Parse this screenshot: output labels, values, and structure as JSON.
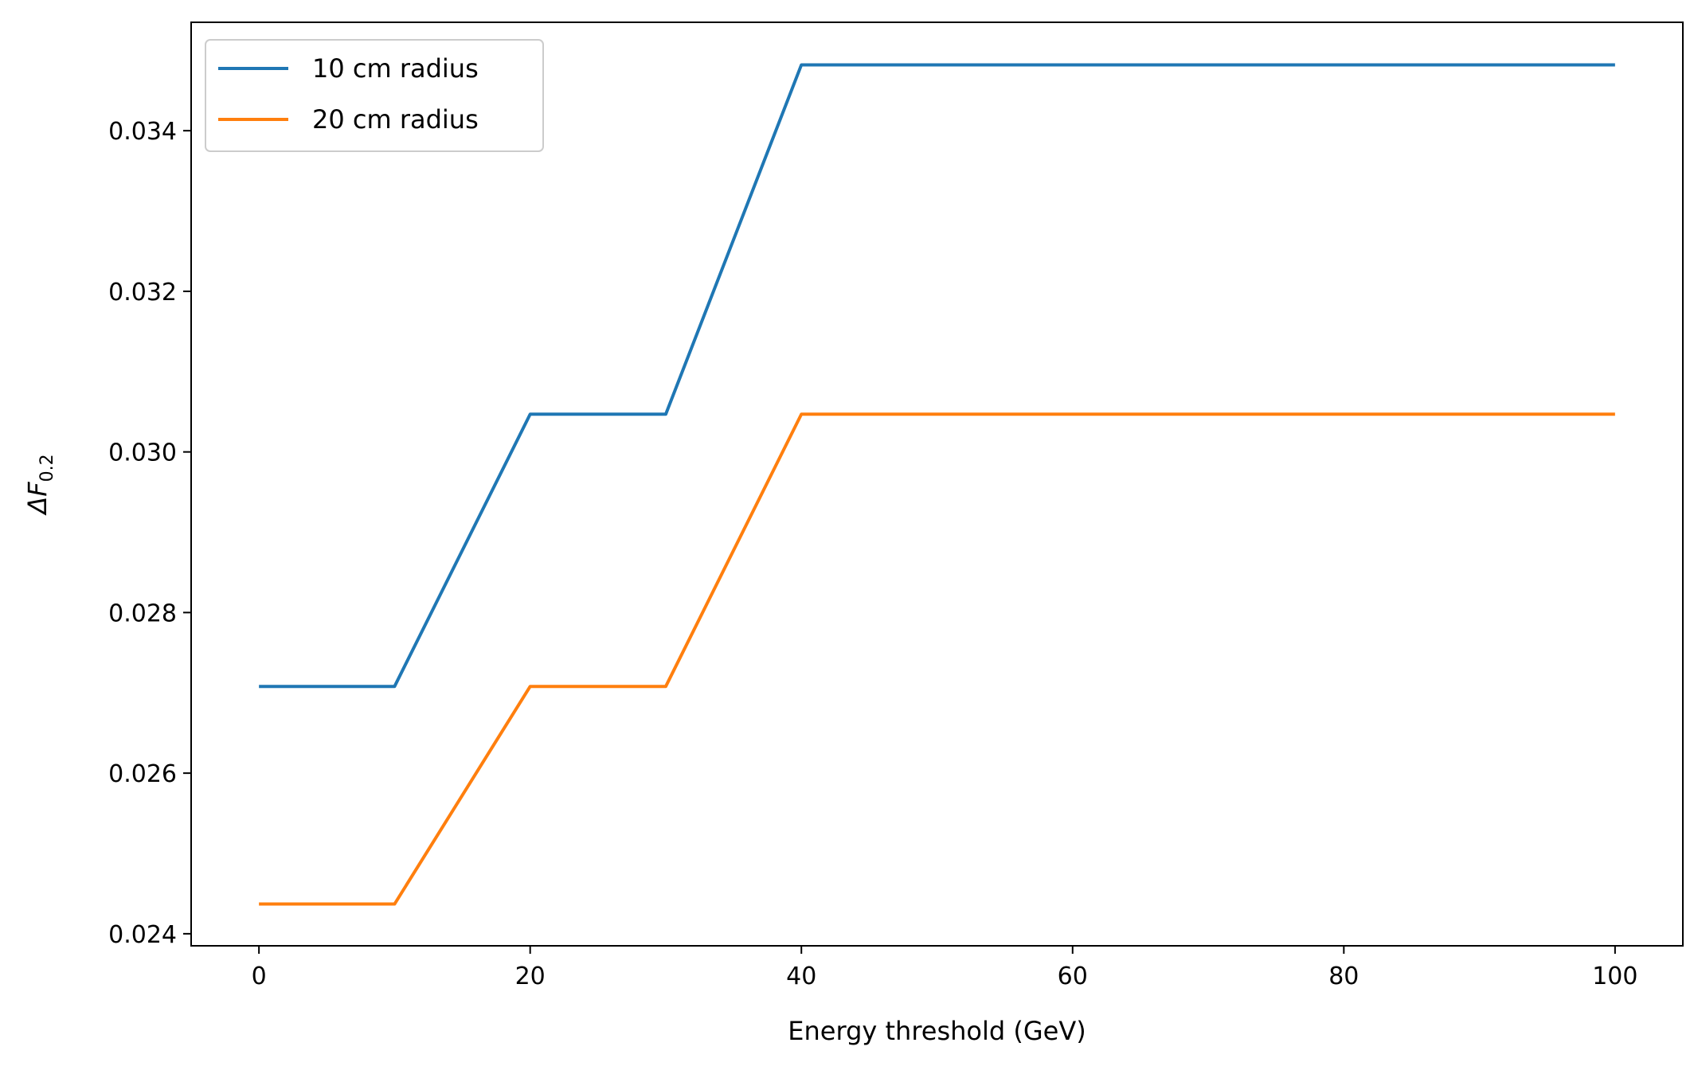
{
  "chart_data": {
    "type": "line",
    "xlabel": "Energy threshold (GeV)",
    "ylabel": {
      "symbol": "ΔF",
      "subscript": "0.2"
    },
    "xlim": [
      -5,
      105
    ],
    "ylim": [
      0.02385,
      0.03535
    ],
    "xticks": [
      0,
      20,
      40,
      60,
      80,
      100
    ],
    "yticks": [
      0.024,
      0.026,
      0.028,
      0.03,
      0.032,
      0.034
    ],
    "ytick_labels": [
      "0.024",
      "0.026",
      "0.028",
      "0.030",
      "0.032",
      "0.034"
    ],
    "grid": false,
    "legend_position": "top-left",
    "series": [
      {
        "name": "10 cm radius",
        "color": "#1f77b4",
        "x": [
          0,
          10,
          20,
          30,
          40,
          100
        ],
        "y": [
          0.02708,
          0.02708,
          0.03047,
          0.03047,
          0.03482,
          0.03482
        ]
      },
      {
        "name": "20 cm radius",
        "color": "#ff7f0e",
        "x": [
          0,
          10,
          20,
          30,
          40,
          100
        ],
        "y": [
          0.02437,
          0.02437,
          0.02708,
          0.02708,
          0.03047,
          0.03047
        ]
      }
    ]
  }
}
